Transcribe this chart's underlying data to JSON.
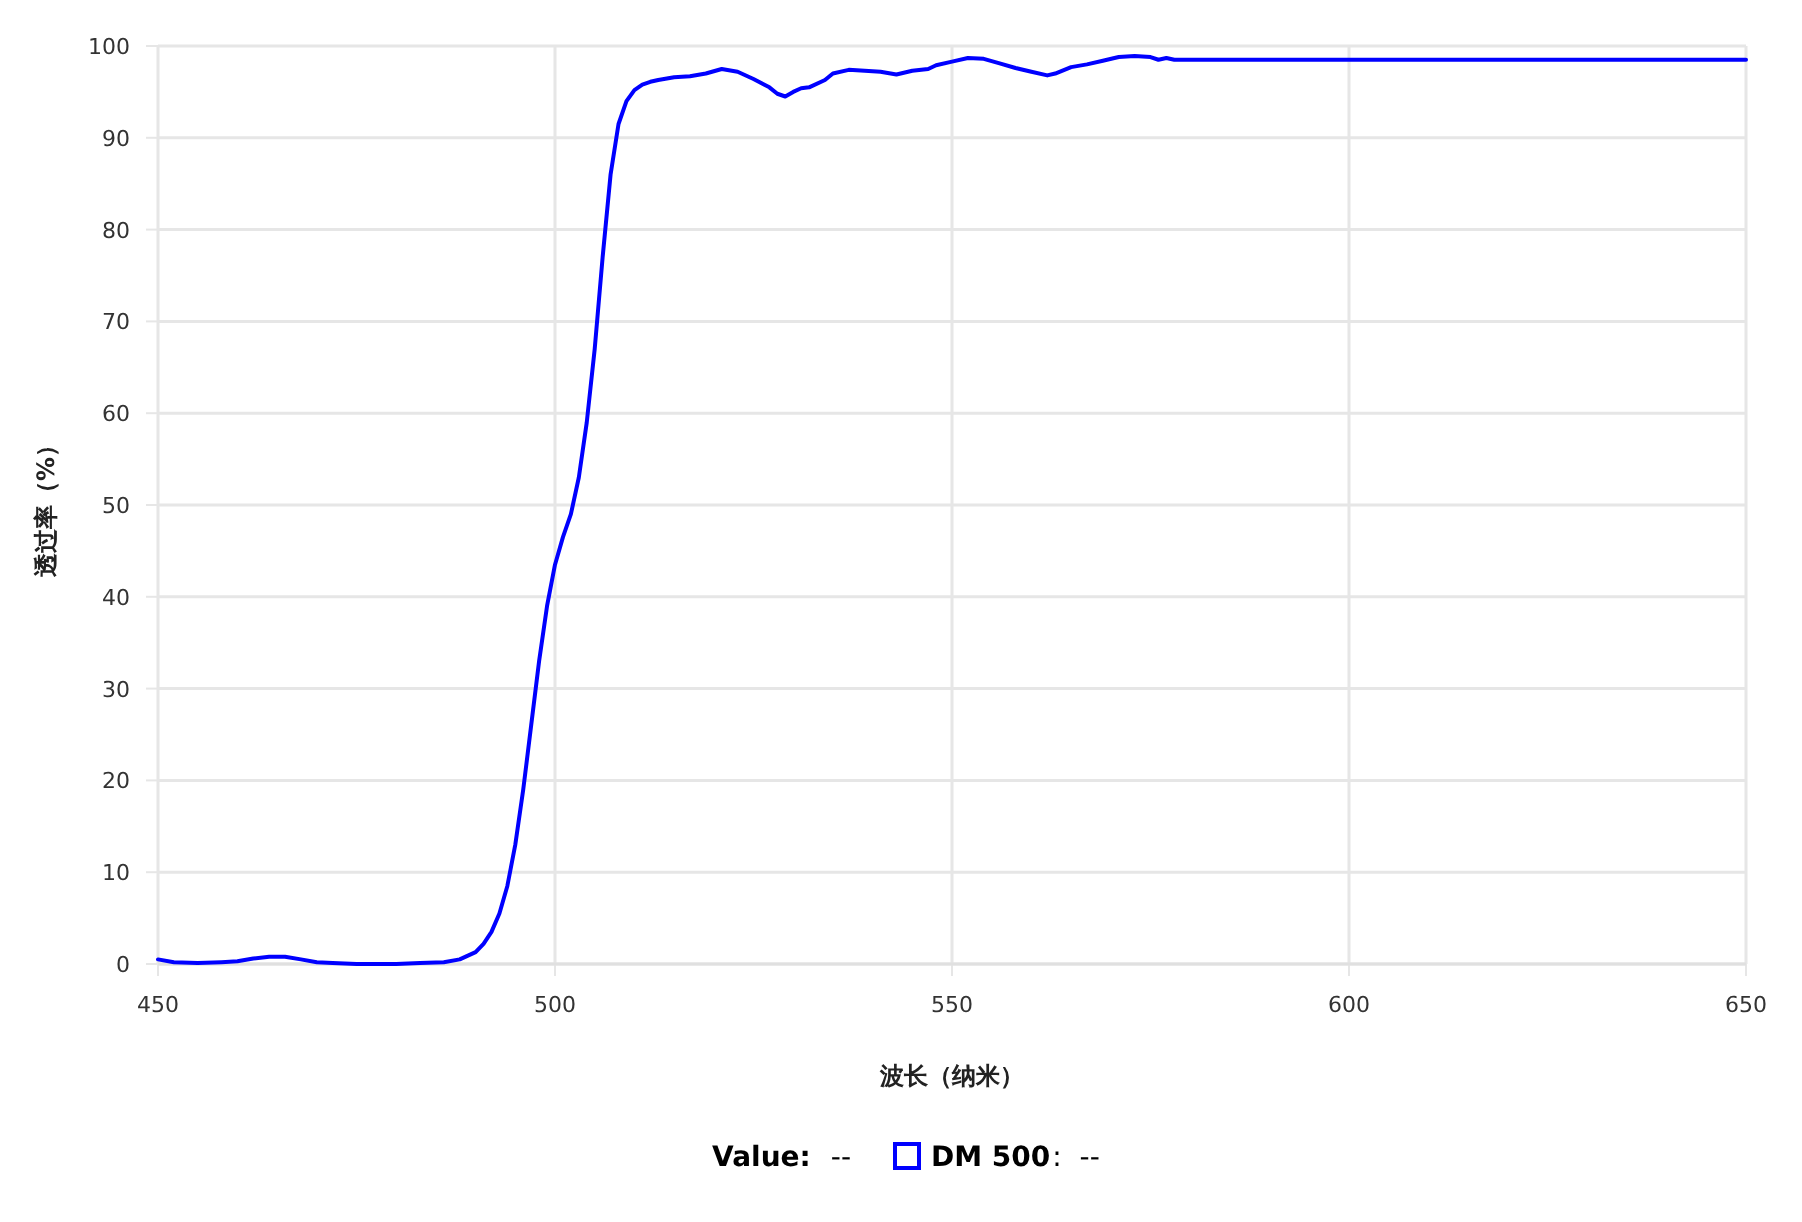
{
  "chart_data": {
    "type": "line",
    "xlabel": "波长（纳米）",
    "ylabel": "透过率（%）",
    "x": [
      450,
      452,
      455,
      458,
      460,
      462,
      464,
      466,
      468,
      470,
      472,
      475,
      480,
      483,
      486,
      488,
      490,
      491,
      492,
      493,
      494,
      495,
      496,
      497,
      498,
      499,
      500,
      501,
      502,
      503,
      504,
      505,
      506,
      507,
      508,
      509,
      510,
      511,
      512,
      513,
      515,
      517,
      519,
      521,
      523,
      525,
      527,
      528,
      529,
      530,
      531,
      532,
      534,
      535,
      537,
      539,
      541,
      543,
      545,
      547,
      548,
      550,
      552,
      554,
      556,
      558,
      560,
      562,
      563,
      565,
      567,
      569,
      571,
      573,
      575,
      576,
      577,
      578,
      580,
      650
    ],
    "series": [
      {
        "name": "DM 500",
        "color": "#0000ff",
        "values": [
          0.5,
          0.2,
          0.1,
          0.2,
          0.3,
          0.6,
          0.8,
          0.8,
          0.5,
          0.2,
          0.1,
          0,
          0,
          0.1,
          0.2,
          0.5,
          1.3,
          2.2,
          3.5,
          5.5,
          8.5,
          13,
          19,
          26,
          33,
          39,
          43.5,
          46.5,
          49,
          53,
          59,
          67,
          77,
          86,
          91.5,
          94,
          95.2,
          95.8,
          96.1,
          96.3,
          96.6,
          96.7,
          97,
          97.5,
          97.2,
          96.4,
          95.5,
          94.8,
          94.5,
          95,
          95.4,
          95.5,
          96.3,
          97,
          97.4,
          97.3,
          97.2,
          96.9,
          97.3,
          97.5,
          97.9,
          98.3,
          98.7,
          98.6,
          98.1,
          97.6,
          97.2,
          96.8,
          97,
          97.7,
          98,
          98.4,
          98.8,
          98.9,
          98.8,
          98.5,
          98.7,
          98.5,
          98.5,
          98.5
        ]
      }
    ],
    "xlim": [
      450,
      650
    ],
    "xticks": [
      450,
      500,
      550,
      600,
      650
    ],
    "ylim": [
      0,
      100
    ],
    "yticks": [
      0,
      10,
      20,
      30,
      40,
      50,
      60,
      70,
      80,
      90,
      100
    ],
    "grid": true,
    "legend": "bottom",
    "marker": "none",
    "line_style": "solid",
    "annotations": [
      "Value:",
      "--",
      ":  --"
    ]
  }
}
